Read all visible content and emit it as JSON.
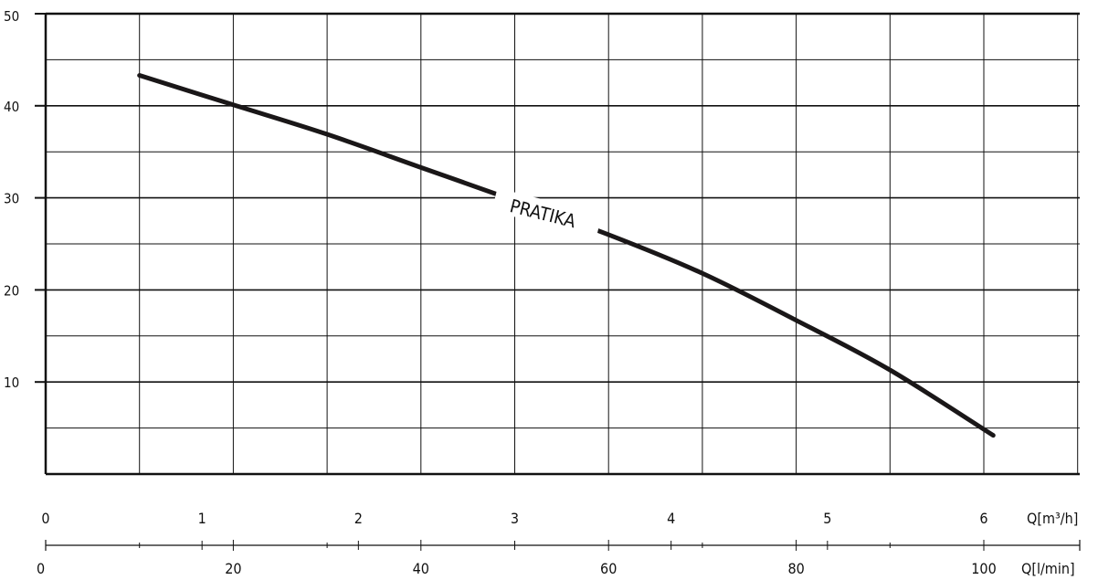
{
  "chart_data": {
    "type": "line",
    "title": "",
    "xlabel": "Q[l/min]",
    "ylabel": "",
    "xlim": [
      0,
      110
    ],
    "ylim": [
      0,
      50
    ],
    "grid": true,
    "y_ticks": [
      "50",
      "40",
      "30",
      "20",
      "10"
    ],
    "x_ticks_lmin": [
      "0",
      "20",
      "40",
      "60",
      "80",
      "100"
    ],
    "x_ticks_m3h": [
      "0",
      "1",
      "2",
      "3",
      "4",
      "5",
      "6"
    ],
    "axis_label_m3h": "Q[m³/h]",
    "axis_label_lmin": "Q[l/min]",
    "series": [
      {
        "name": "PRATIKA",
        "x": [
          10,
          20,
          30,
          40,
          50,
          60,
          70,
          80,
          90,
          101
        ],
        "y": [
          43.3,
          40.1,
          36.9,
          33.3,
          29.7,
          26.0,
          21.8,
          16.7,
          11.3,
          4.2
        ]
      }
    ],
    "colors": {
      "line": "#1a1718",
      "grid": "#111111",
      "axis": "#111111"
    }
  }
}
